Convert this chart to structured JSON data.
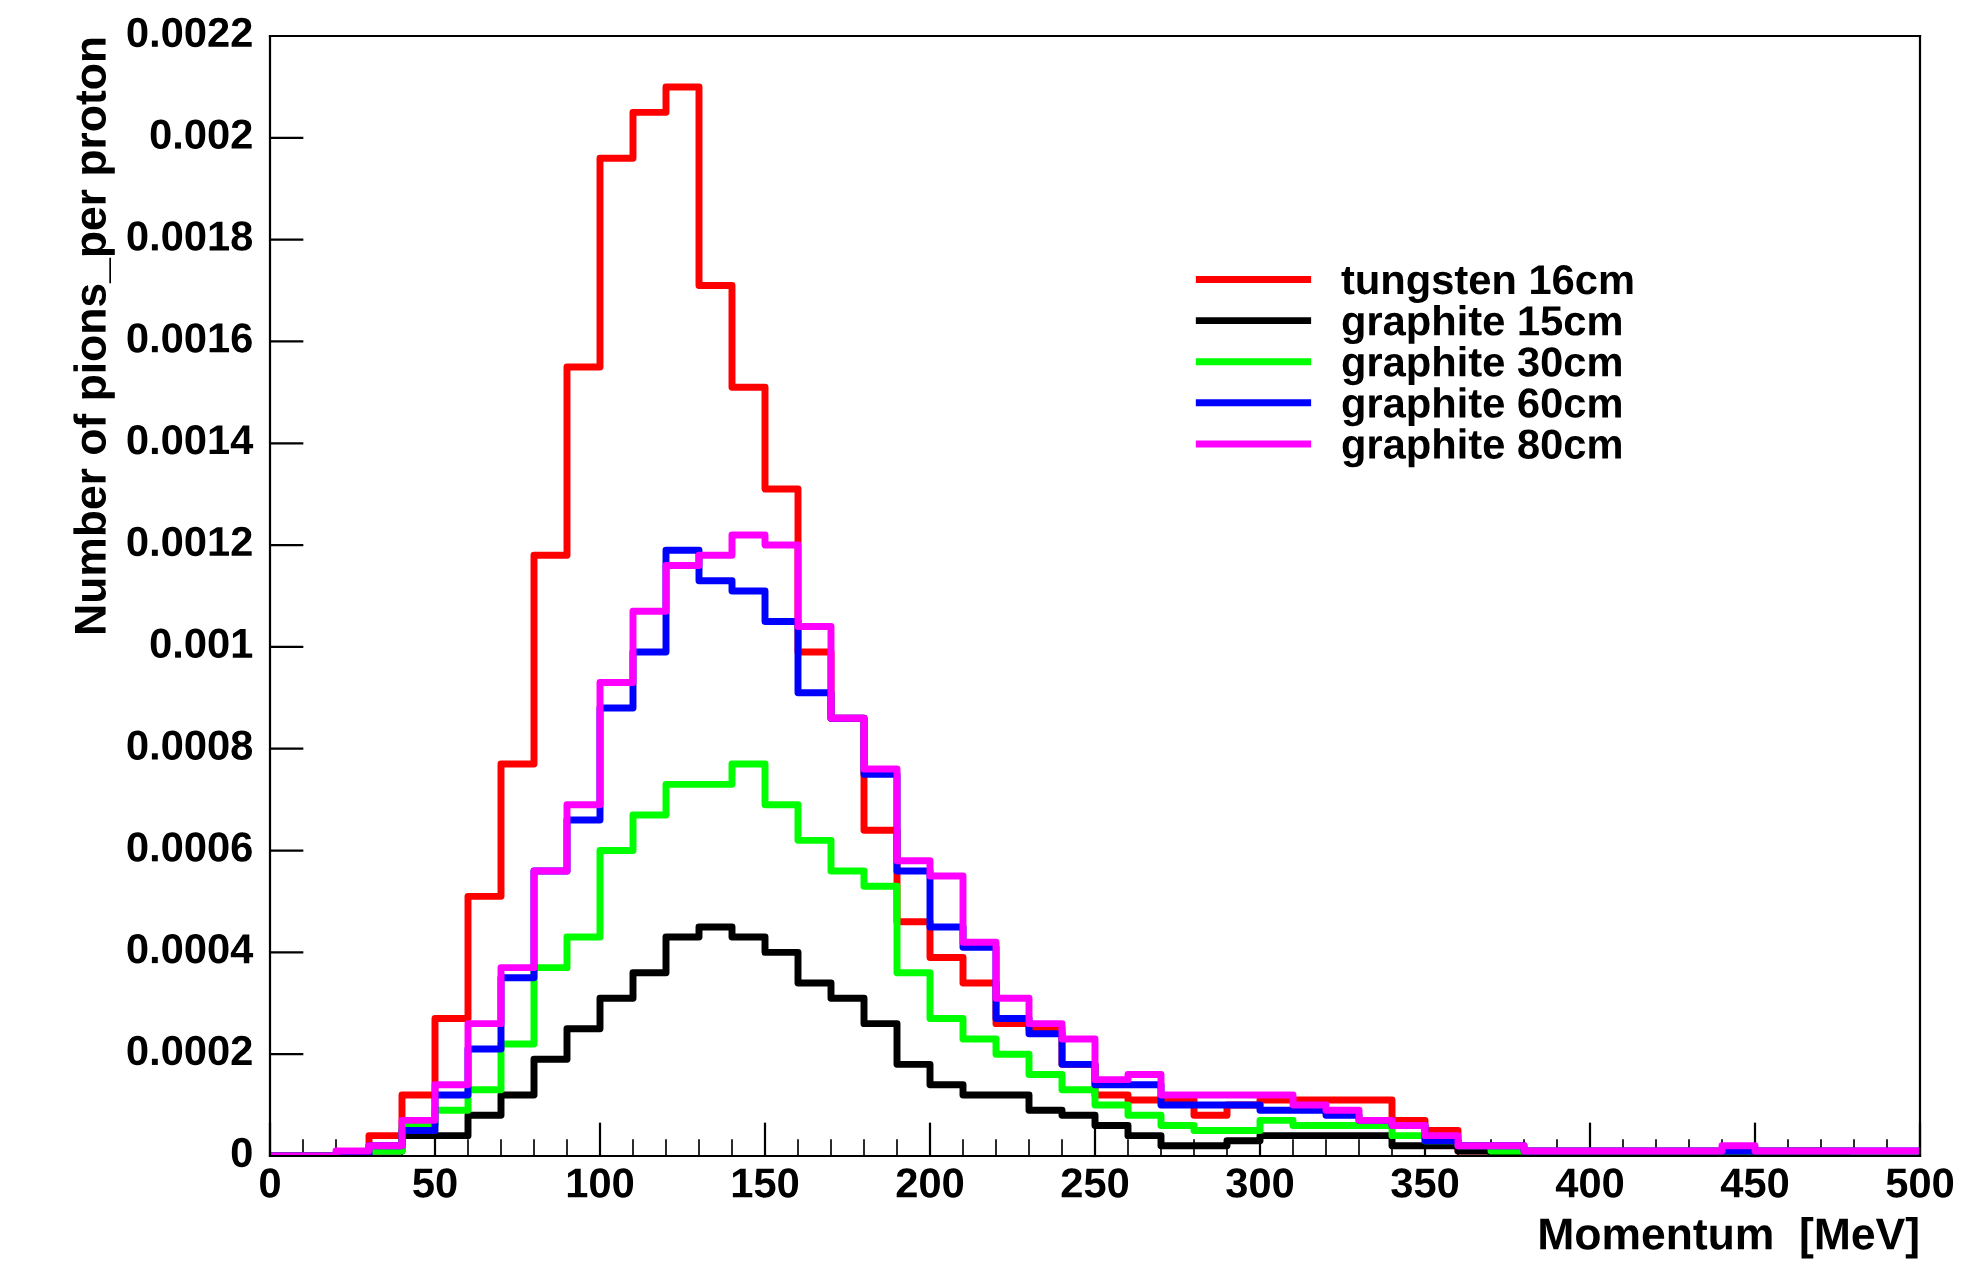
{
  "chart_data": {
    "type": "histogram",
    "xlabel": "Momentum  [MeV]",
    "ylabel": "Number of pions_per proton",
    "bins": [
      0,
      10,
      20,
      30,
      40,
      50,
      60,
      70,
      80,
      90,
      100,
      110,
      120,
      130,
      140,
      150,
      160,
      170,
      180,
      190,
      200,
      210,
      220,
      230,
      240,
      250,
      260,
      270,
      280,
      290,
      300,
      310,
      320,
      330,
      340,
      350,
      360,
      370,
      380,
      390,
      400,
      410,
      420,
      430,
      440,
      450,
      460,
      470,
      480,
      490,
      500
    ],
    "series": [
      {
        "name": "tungsten 16cm",
        "color": "#ff0000",
        "values": [
          0,
          0,
          0,
          4e-05,
          0.00012,
          0.00027,
          0.00051,
          0.00077,
          0.00118,
          0.00155,
          0.00196,
          0.00205,
          0.0021,
          0.00171,
          0.00151,
          0.00131,
          0.00099,
          0.00086,
          0.00064,
          0.00046,
          0.00039,
          0.00034,
          0.00026,
          0.00025,
          0.00018,
          0.00012,
          0.00011,
          0.00011,
          8e-05,
          0.0001,
          0.00011,
          0.00011,
          0.00011,
          0.00011,
          7e-05,
          5e-05,
          1e-05,
          1e-05,
          0,
          0,
          0,
          0,
          0,
          0,
          0,
          0,
          1e-05,
          0,
          0,
          0
        ]
      },
      {
        "name": "graphite 15cm",
        "color": "#000000",
        "values": [
          0,
          0,
          0,
          1e-05,
          4e-05,
          4e-05,
          8e-05,
          0.00012,
          0.00019,
          0.00025,
          0.00031,
          0.00036,
          0.00043,
          0.00045,
          0.00043,
          0.0004,
          0.00034,
          0.00031,
          0.00026,
          0.00018,
          0.00014,
          0.00012,
          0.00012,
          9e-05,
          8e-05,
          6e-05,
          4e-05,
          2e-05,
          2e-05,
          3e-05,
          4e-05,
          4e-05,
          4e-05,
          4e-05,
          2e-05,
          2e-05,
          1e-05,
          0,
          0,
          0,
          0,
          0,
          0,
          0,
          0,
          0,
          0,
          0,
          0,
          0
        ]
      },
      {
        "name": "graphite 30cm",
        "color": "#00ff00",
        "values": [
          0,
          0,
          0,
          1e-05,
          6e-05,
          9e-05,
          0.00013,
          0.00022,
          0.00037,
          0.00043,
          0.0006,
          0.00067,
          0.00073,
          0.00073,
          0.00077,
          0.00069,
          0.00062,
          0.00056,
          0.00053,
          0.00036,
          0.00027,
          0.00023,
          0.0002,
          0.00016,
          0.00013,
          0.0001,
          8e-05,
          6e-05,
          5e-05,
          5e-05,
          7e-05,
          6e-05,
          6e-05,
          6e-05,
          4e-05,
          3e-05,
          2e-05,
          1e-05,
          1e-05,
          1e-05,
          1e-05,
          1e-05,
          1e-05,
          1e-05,
          1e-05,
          1e-05,
          1e-05,
          1e-05,
          0,
          0
        ]
      },
      {
        "name": "graphite 60cm",
        "color": "#0000ff",
        "values": [
          0,
          0,
          0,
          2e-05,
          5e-05,
          0.00012,
          0.00021,
          0.00035,
          0.00056,
          0.00066,
          0.00088,
          0.00099,
          0.00119,
          0.00113,
          0.00111,
          0.00105,
          0.00091,
          0.00086,
          0.00075,
          0.00056,
          0.00045,
          0.00041,
          0.00027,
          0.00024,
          0.00018,
          0.00014,
          0.00014,
          0.0001,
          0.0001,
          0.0001,
          9e-05,
          9e-05,
          8e-05,
          7e-05,
          6e-05,
          3e-05,
          2e-05,
          2e-05,
          1e-05,
          1e-05,
          1e-05,
          1e-05,
          1e-05,
          1e-05,
          1e-05,
          1e-05,
          1e-05,
          1e-05,
          1e-05,
          1e-05
        ]
      },
      {
        "name": "graphite 80cm",
        "color": "#ff00ff",
        "values": [
          0,
          0,
          1e-05,
          2e-05,
          7e-05,
          0.00014,
          0.00026,
          0.00037,
          0.00056,
          0.00069,
          0.00093,
          0.00107,
          0.00116,
          0.00118,
          0.00122,
          0.0012,
          0.00104,
          0.00086,
          0.00076,
          0.00058,
          0.00055,
          0.00042,
          0.00031,
          0.00026,
          0.00023,
          0.00015,
          0.00016,
          0.00012,
          0.00012,
          0.00012,
          0.00012,
          0.0001,
          9e-05,
          7e-05,
          6e-05,
          4e-05,
          2e-05,
          2e-05,
          1e-05,
          1e-05,
          1e-05,
          1e-05,
          1e-05,
          1e-05,
          2e-05,
          1e-05,
          1e-05,
          1e-05,
          1e-05,
          1e-05
        ]
      }
    ],
    "xlim": [
      0,
      500
    ],
    "ylim": [
      0,
      0.0022
    ],
    "xticks": [
      0,
      50,
      100,
      150,
      200,
      250,
      300,
      350,
      400,
      450,
      500
    ],
    "yticks": [
      0,
      0.0002,
      0.0004,
      0.0006,
      0.0008,
      0.001,
      0.0012,
      0.0014,
      0.0016,
      0.0018,
      0.002,
      0.0022
    ],
    "grid": false,
    "legend": "top right"
  }
}
